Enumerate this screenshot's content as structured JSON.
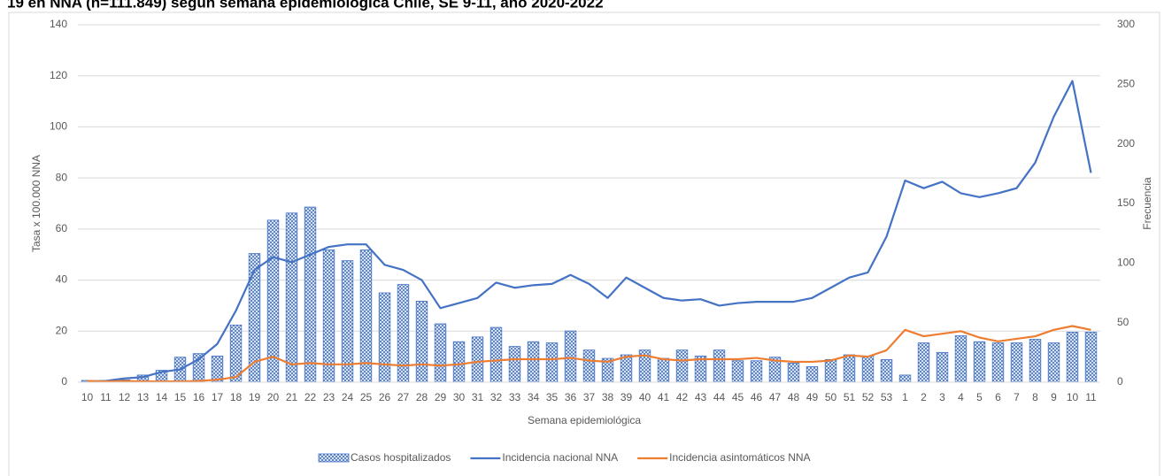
{
  "chart_data": {
    "type": "bar-line",
    "title": "19 en NNA (n=111.849) según semana epidemiológica Chile, SE 9-11, año 2020-2022",
    "x_label": "Semana epidemiológica",
    "y_label": "Tasa x 100.000 NNA",
    "y2_label": "Frecuencia",
    "categories": [
      "10",
      "11",
      "12",
      "13",
      "14",
      "15",
      "16",
      "17",
      "18",
      "19",
      "20",
      "21",
      "22",
      "23",
      "24",
      "25",
      "26",
      "27",
      "28",
      "29",
      "30",
      "31",
      "32",
      "33",
      "34",
      "35",
      "36",
      "37",
      "38",
      "39",
      "40",
      "41",
      "42",
      "43",
      "44",
      "45",
      "46",
      "47",
      "48",
      "49",
      "50",
      "51",
      "52",
      "53",
      "1",
      "2",
      "3",
      "4",
      "5",
      "6",
      "7",
      "8",
      "9",
      "10",
      "11"
    ],
    "ylim": [
      0,
      140
    ],
    "yticks": [
      0,
      20,
      40,
      60,
      80,
      100,
      120,
      140
    ],
    "y2lim": [
      0,
      300
    ],
    "y2ticks": [
      0,
      50,
      100,
      150,
      200,
      250,
      300
    ],
    "grid": true,
    "legend": "bottom",
    "series": [
      {
        "name": "Casos hospitalizados",
        "type": "bar",
        "axis": "y2",
        "color": "#4472c4",
        "values": [
          1.5,
          1.5,
          2,
          6,
          10,
          21,
          24,
          22,
          48,
          108,
          136,
          142,
          147,
          111,
          102,
          111,
          75,
          82,
          68,
          49,
          34,
          38,
          46,
          30,
          34,
          33,
          43,
          27,
          20,
          23,
          27,
          20,
          27,
          22,
          27,
          18,
          18,
          21,
          16,
          13,
          19,
          23,
          22,
          19,
          6,
          33,
          25,
          39,
          34,
          33,
          33,
          36,
          33,
          42,
          42
        ]
      },
      {
        "name": "Incidencia nacional NNA",
        "type": "line",
        "axis": "y",
        "color": "#4472c4",
        "values": [
          0.3,
          0.5,
          1.5,
          2,
          4,
          5,
          9,
          15,
          28,
          44,
          49,
          47,
          50,
          53,
          54,
          54,
          46,
          44,
          40,
          29,
          31,
          33,
          39,
          37,
          38,
          38.5,
          42,
          38.5,
          33,
          41,
          37,
          33,
          32,
          32.5,
          30,
          31,
          31.5,
          31.5,
          31.5,
          33,
          37,
          41,
          43,
          57,
          79,
          76,
          78.5,
          74,
          72.5,
          74,
          76,
          86,
          104,
          118,
          82
        ]
      },
      {
        "name": "Incidencia asintomáticos NNA",
        "type": "line",
        "axis": "y",
        "color": "#ed7d31",
        "values": [
          0.5,
          0.3,
          0.5,
          0.3,
          0.3,
          0.3,
          0.5,
          1,
          2,
          8,
          10,
          7,
          7.5,
          7,
          7,
          7.5,
          7,
          6.5,
          7,
          6.5,
          7,
          8,
          8.5,
          9,
          9,
          9,
          9.5,
          8.5,
          8,
          10,
          10.5,
          9,
          8.5,
          9,
          9,
          9,
          9.5,
          8.5,
          8,
          8,
          8.5,
          10.5,
          10,
          12.5,
          20.5,
          18,
          19,
          20,
          17.5,
          16,
          17,
          18,
          20.5,
          22,
          20.5
        ]
      }
    ]
  }
}
